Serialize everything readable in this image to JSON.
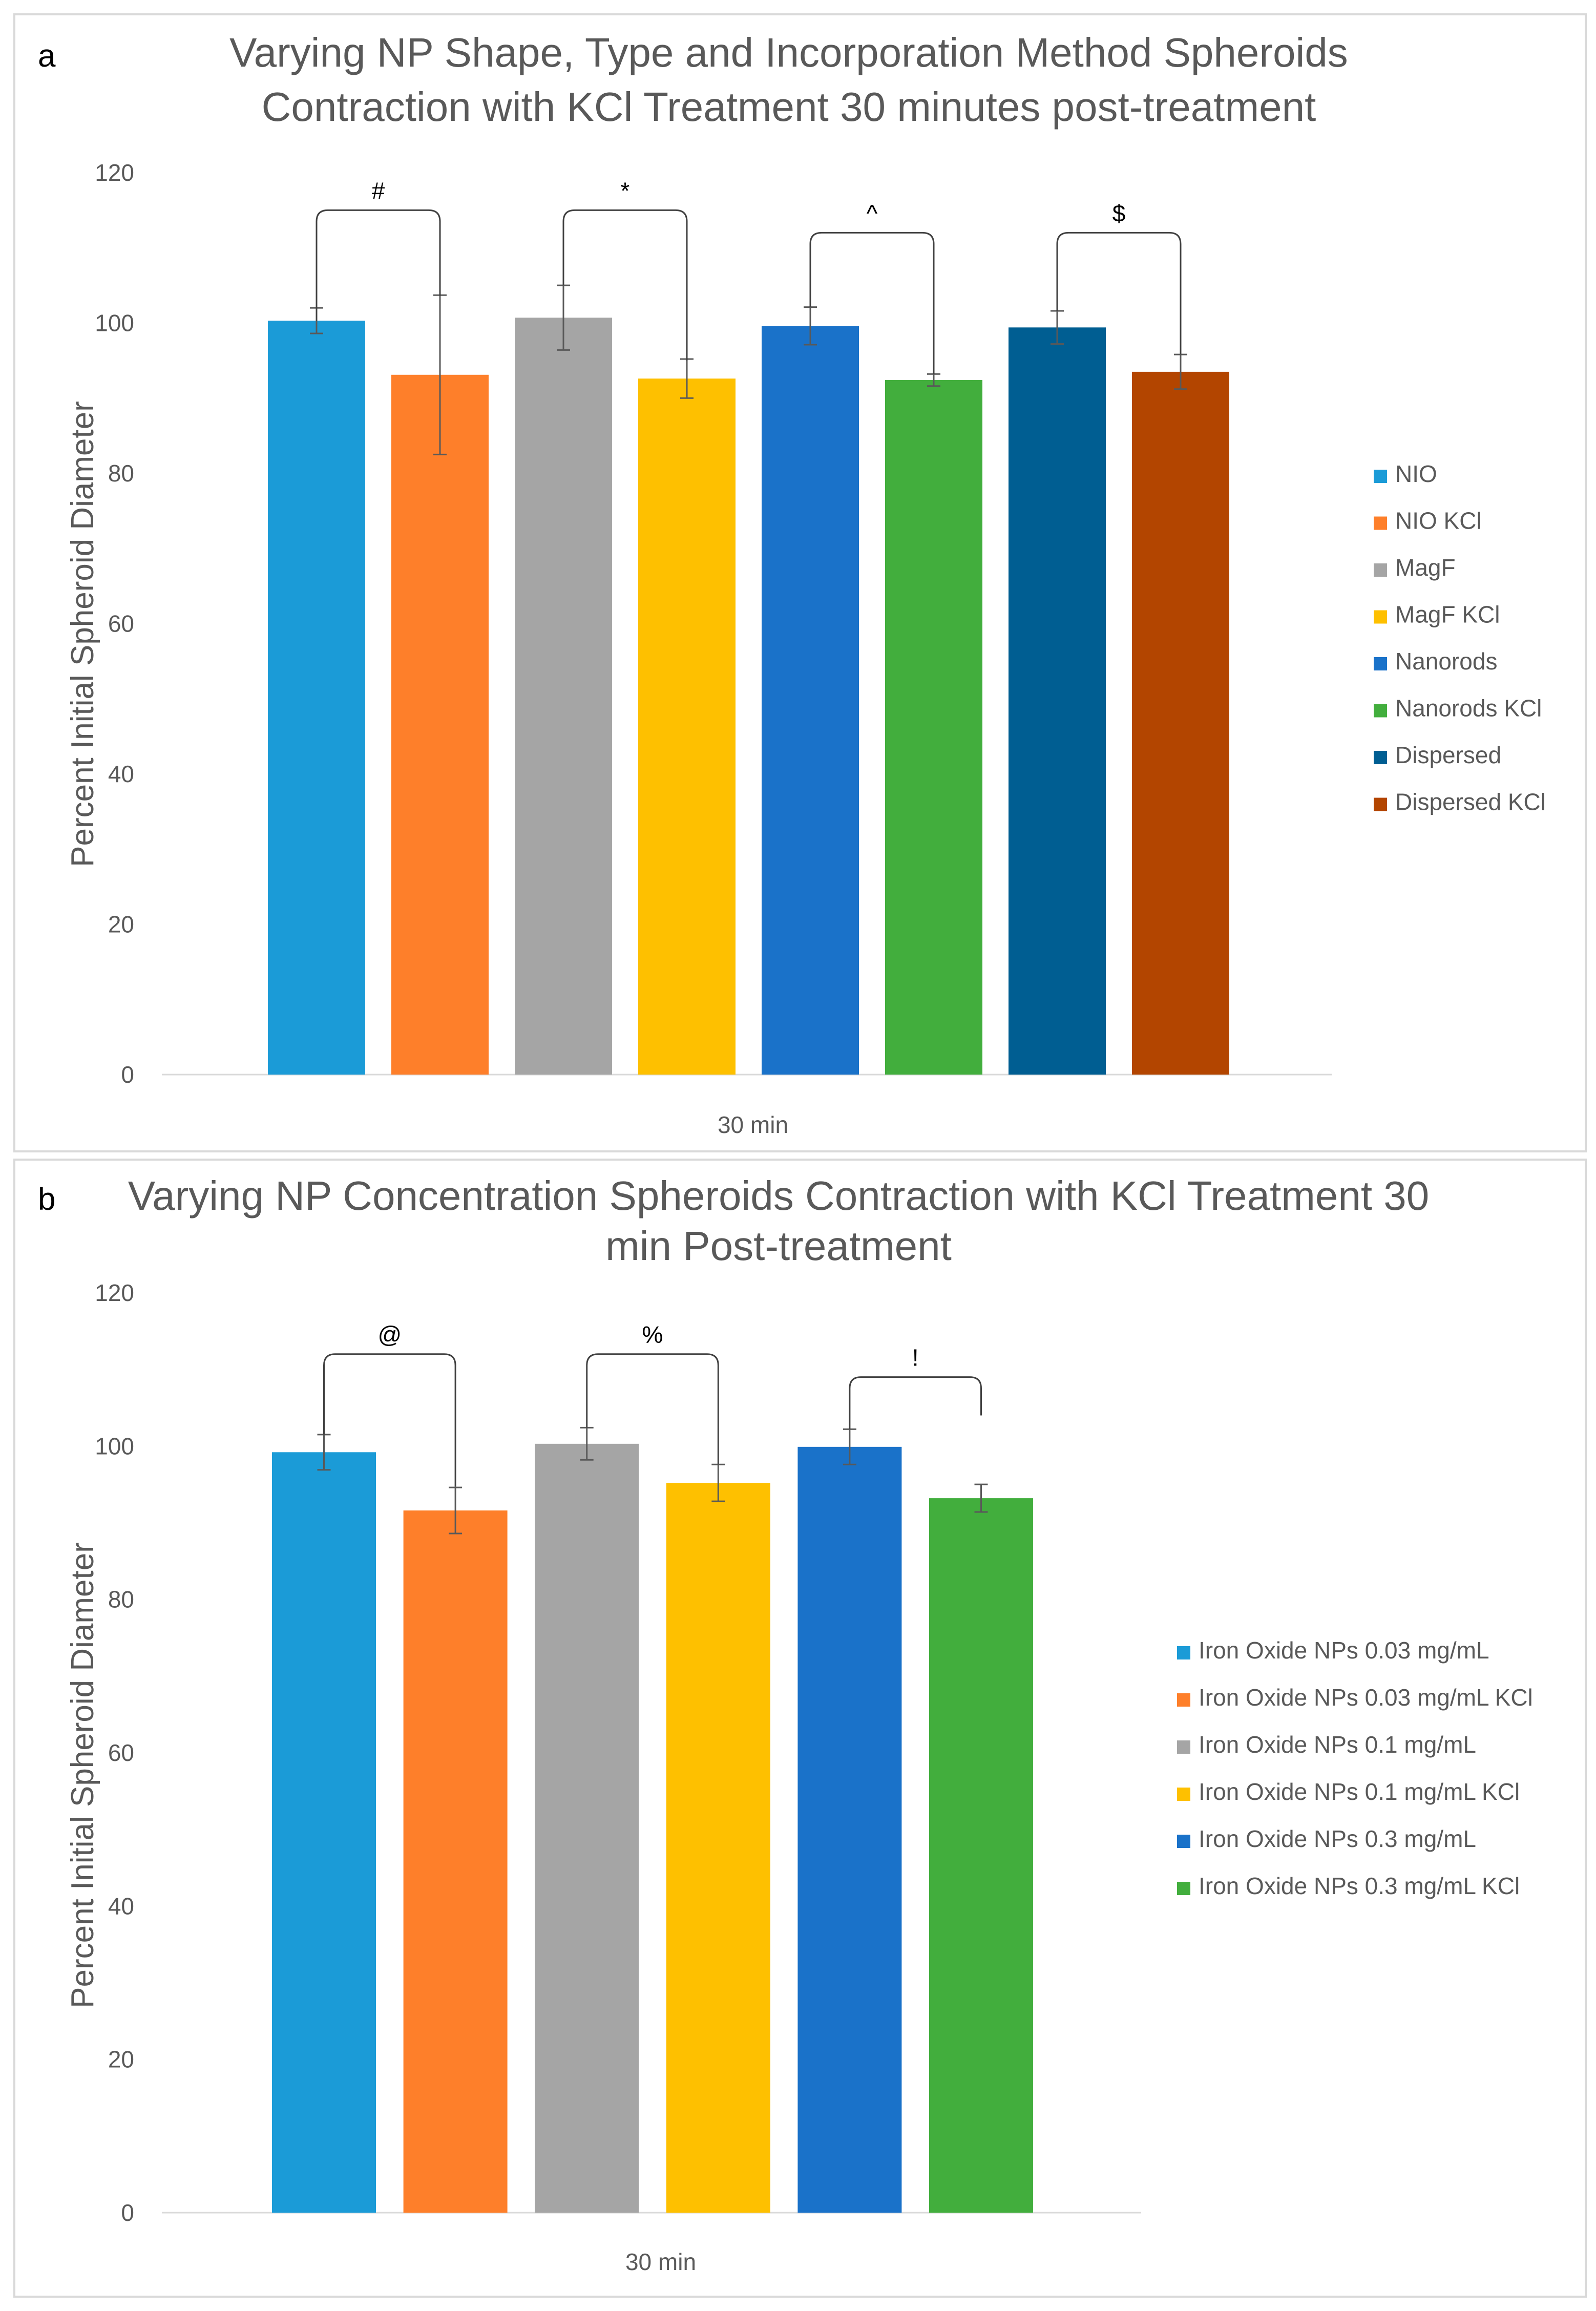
{
  "figure": {
    "panels": [
      "a",
      "b"
    ]
  },
  "chart_data": [
    {
      "type": "bar",
      "panel_label": "a",
      "title_lines": [
        "Varying NP Shape, Type and Incorporation Method Spheroids",
        "Contraction with KCl Treatment 30 minutes post-treatment"
      ],
      "xlabel": "",
      "ylabel": "Percent Initial Spheroid  Diameter",
      "ylim": [
        0,
        120
      ],
      "yticks": [
        0,
        20,
        40,
        60,
        80,
        100,
        120
      ],
      "grid": false,
      "legend_position": "right",
      "categories": [
        "30 min"
      ],
      "series": [
        {
          "name": "NIO",
          "value": 100.3,
          "error": 1.7,
          "color": "#1b9bd7"
        },
        {
          "name": "NIO KCl",
          "value": 93.1,
          "error": 10.6,
          "color": "#fe7f2a"
        },
        {
          "name": "MagF",
          "value": 100.7,
          "error": 4.3,
          "color": "#a5a5a5"
        },
        {
          "name": "MagF KCl",
          "value": 92.6,
          "error": 2.6,
          "color": "#fec000"
        },
        {
          "name": "Nanorods",
          "value": 99.6,
          "error": 2.5,
          "color": "#1a72c9"
        },
        {
          "name": "Nanorods KCl",
          "value": 92.4,
          "error": 0.8,
          "color": "#42ae3d"
        },
        {
          "name": "Dispersed",
          "value": 99.4,
          "error": 2.2,
          "color": "#005e92"
        },
        {
          "name": "Dispersed KCl",
          "value": 93.5,
          "error": 2.3,
          "color": "#b34500"
        }
      ],
      "significance": [
        {
          "symbol": "#",
          "between": [
            0,
            1
          ],
          "top": 115,
          "left_end": 100.3,
          "right_end": 103.6
        },
        {
          "symbol": "*",
          "between": [
            2,
            3
          ],
          "top": 115,
          "left_end": 105.0,
          "right_end": 95.0
        },
        {
          "symbol": "^",
          "between": [
            4,
            5
          ],
          "top": 112,
          "left_end": 102.1,
          "right_end": 93.2
        },
        {
          "symbol": "$",
          "between": [
            6,
            7
          ],
          "top": 112,
          "left_end": 101.6,
          "right_end": 95.8
        }
      ]
    },
    {
      "type": "bar",
      "panel_label": "b",
      "title_lines": [
        "Varying NP Concentration Spheroids Contraction with KCl Treatment 30",
        "min Post-treatment"
      ],
      "xlabel": "",
      "ylabel": "Percent Initial Spheroid  Diameter",
      "ylim": [
        0,
        120
      ],
      "yticks": [
        0,
        20,
        40,
        60,
        80,
        100,
        120
      ],
      "grid": false,
      "legend_position": "right",
      "categories": [
        "30 min"
      ],
      "series": [
        {
          "name": "Iron Oxide NPs 0.03 mg/mL",
          "value": 99.2,
          "error": 2.3,
          "color": "#1b9bd7"
        },
        {
          "name": "Iron Oxide NPs 0.03 mg/mL KCl",
          "value": 91.6,
          "error": 3.0,
          "color": "#fe7f2a"
        },
        {
          "name": "Iron Oxide NPs 0.1 mg/mL",
          "value": 100.3,
          "error": 2.1,
          "color": "#a5a5a5"
        },
        {
          "name": "Iron Oxide NPs 0.1 mg/mL KCl",
          "value": 95.2,
          "error": 2.4,
          "color": "#fec000"
        },
        {
          "name": "Iron Oxide NPs 0.3 mg/mL",
          "value": 99.9,
          "error": 2.3,
          "color": "#1a72c9"
        },
        {
          "name": "Iron Oxide NPs 0.3 mg/mL KCl",
          "value": 93.2,
          "error": 1.8,
          "color": "#42ae3d"
        }
      ],
      "significance": [
        {
          "symbol": "@",
          "between": [
            0,
            1
          ],
          "top": 112,
          "left_end": 101.5,
          "right_end": 94.7
        },
        {
          "symbol": "%",
          "between": [
            2,
            3
          ],
          "top": 112,
          "left_end": 102.4,
          "right_end": 97.6
        },
        {
          "symbol": "!",
          "between": [
            4,
            5
          ],
          "top": 109,
          "left_end": 102.2,
          "right_end": 104.0
        }
      ]
    }
  ]
}
